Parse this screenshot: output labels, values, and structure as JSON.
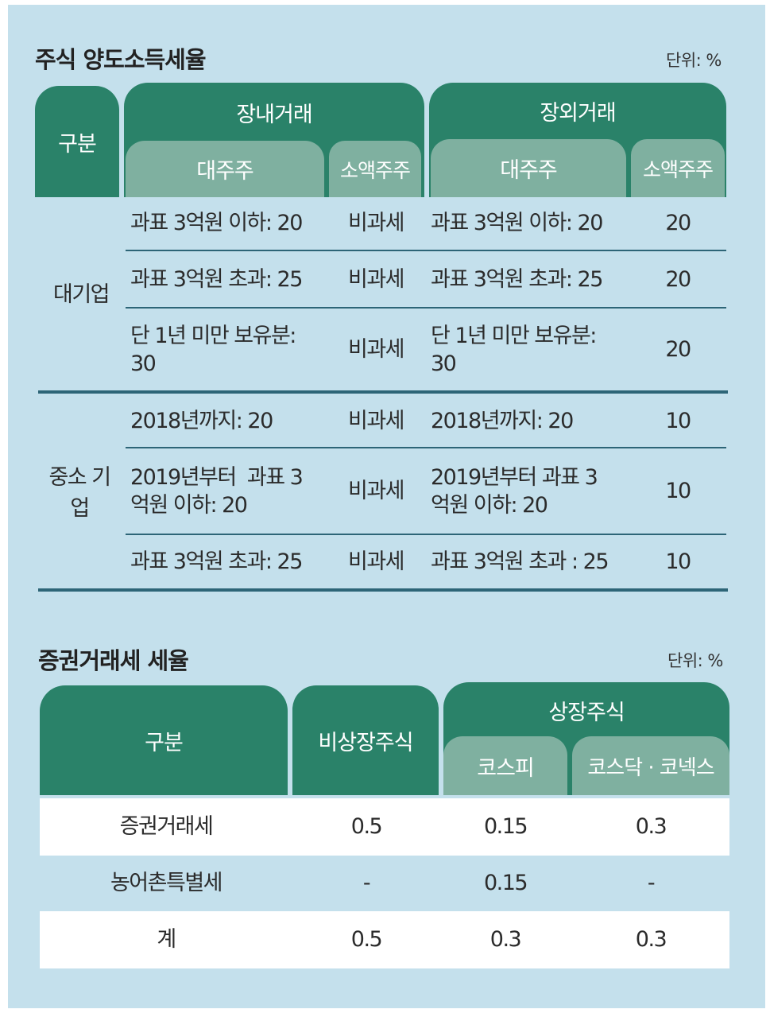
{
  "table1": {
    "title": "주식 양도소득세율",
    "unit": "단위: %",
    "headers": {
      "category": "구분",
      "onmarket": "장내거래",
      "offmarket": "장외거래",
      "major1": "대주주",
      "minor1": "소액주주",
      "major2": "대주주",
      "minor2": "소액주주"
    },
    "groups": [
      {
        "label": "대기업",
        "rows": [
          {
            "on_major": "과표 3억원 이하: 20",
            "on_minor": "비과세",
            "off_major": "과표 3억원 이하: 20",
            "off_minor": "20"
          },
          {
            "on_major": "과표 3억원 초과: 25",
            "on_minor": "비과세",
            "off_major": "과표 3억원 초과: 25",
            "off_minor": "20"
          },
          {
            "on_major": "단 1년 미만 보유분: 30",
            "on_minor": "비과세",
            "off_major": "단 1년 미만 보유분: 30",
            "off_minor": "20"
          }
        ]
      },
      {
        "label": "중소 기업",
        "rows": [
          {
            "on_major": "2018년까지: 20",
            "on_minor": "비과세",
            "off_major": "2018년까지: 20",
            "off_minor": "10"
          },
          {
            "on_major": "2019년부터  과표 3억원 이하: 20",
            "on_minor": "비과세",
            "off_major": "2019년부터 과표 3억원 이하: 20",
            "off_minor": "10"
          },
          {
            "on_major": "과표 3억원 초과: 25",
            "on_minor": "비과세",
            "off_major": "과표 3억원 초과 : 25",
            "off_minor": "10"
          }
        ]
      }
    ]
  },
  "table2": {
    "title": "증권거래세 세율",
    "unit": "단위: %",
    "headers": {
      "category": "구분",
      "unlisted": "비상장주식",
      "listed": "상장주식",
      "kospi": "코스피",
      "kosdaq": "코스닥 · 코넥스"
    },
    "rows": [
      {
        "label": "증권거래세",
        "unlisted": "0.5",
        "kospi": "0.15",
        "kosdaq": "0.3"
      },
      {
        "label": "농어촌특별세",
        "unlisted": "-",
        "kospi": "0.15",
        "kosdaq": "-"
      },
      {
        "label": "계",
        "unlisted": "0.5",
        "kospi": "0.3",
        "kosdaq": "0.3"
      }
    ]
  }
}
